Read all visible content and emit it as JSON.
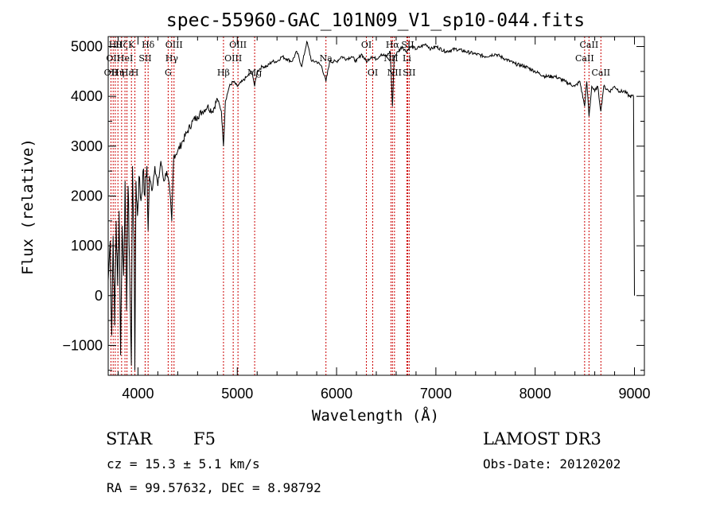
{
  "chart_data": {
    "type": "line",
    "title": "spec-55960-GAC_101N09_V1_sp10-044.fits",
    "xlabel": "Wavelength (Å)",
    "ylabel": "Flux (relative)",
    "xlim": [
      3700,
      9100
    ],
    "ylim": [
      -1600,
      5200
    ],
    "x_ticks": [
      4000,
      5000,
      6000,
      7000,
      8000,
      9000
    ],
    "y_ticks": [
      -1000,
      0,
      1000,
      2000,
      3000,
      4000,
      5000
    ],
    "x_tick_labels": [
      "4000",
      "5000",
      "6000",
      "7000",
      "8000",
      "9000"
    ],
    "y_tick_labels": [
      "−1000",
      "0",
      "1000",
      "2000",
      "3000",
      "4000",
      "5000"
    ],
    "series": [
      {
        "name": "spectrum",
        "points": [
          [
            3700,
            300
          ],
          [
            3720,
            1100
          ],
          [
            3735,
            -800
          ],
          [
            3750,
            1200
          ],
          [
            3765,
            -600
          ],
          [
            3780,
            1500
          ],
          [
            3795,
            200
          ],
          [
            3810,
            1700
          ],
          [
            3825,
            -1200
          ],
          [
            3840,
            1400
          ],
          [
            3855,
            400
          ],
          [
            3870,
            2300
          ],
          [
            3885,
            -300
          ],
          [
            3900,
            2200
          ],
          [
            3915,
            700
          ],
          [
            3933,
            -1400
          ],
          [
            3945,
            2600
          ],
          [
            3960,
            1100
          ],
          [
            3968,
            -1500
          ],
          [
            3980,
            2300
          ],
          [
            3995,
            1600
          ],
          [
            4010,
            2400
          ],
          [
            4030,
            1900
          ],
          [
            4050,
            2500
          ],
          [
            4070,
            2000
          ],
          [
            4090,
            2600
          ],
          [
            4102,
            1300
          ],
          [
            4115,
            2400
          ],
          [
            4140,
            2100
          ],
          [
            4170,
            2600
          ],
          [
            4200,
            2200
          ],
          [
            4230,
            2700
          ],
          [
            4260,
            2300
          ],
          [
            4290,
            2500
          ],
          [
            4320,
            2100
          ],
          [
            4340,
            1500
          ],
          [
            4360,
            2800
          ],
          [
            4400,
            2900
          ],
          [
            4450,
            3100
          ],
          [
            4500,
            3300
          ],
          [
            4550,
            3500
          ],
          [
            4600,
            3600
          ],
          [
            4650,
            3700
          ],
          [
            4700,
            3800
          ],
          [
            4750,
            3700
          ],
          [
            4800,
            3950
          ],
          [
            4840,
            3700
          ],
          [
            4861,
            3000
          ],
          [
            4880,
            3900
          ],
          [
            4920,
            4200
          ],
          [
            4960,
            4300
          ],
          [
            5000,
            4200
          ],
          [
            5050,
            4300
          ],
          [
            5100,
            4400
          ],
          [
            5150,
            4500
          ],
          [
            5175,
            4200
          ],
          [
            5200,
            4500
          ],
          [
            5250,
            4600
          ],
          [
            5300,
            4600
          ],
          [
            5350,
            4700
          ],
          [
            5400,
            4700
          ],
          [
            5450,
            4800
          ],
          [
            5500,
            4750
          ],
          [
            5550,
            4700
          ],
          [
            5600,
            4900
          ],
          [
            5650,
            4600
          ],
          [
            5700,
            5100
          ],
          [
            5750,
            4700
          ],
          [
            5800,
            4700
          ],
          [
            5850,
            4600
          ],
          [
            5893,
            4300
          ],
          [
            5930,
            4700
          ],
          [
            6000,
            4700
          ],
          [
            6050,
            4800
          ],
          [
            6100,
            4750
          ],
          [
            6150,
            4800
          ],
          [
            6200,
            4700
          ],
          [
            6250,
            4850
          ],
          [
            6300,
            4700
          ],
          [
            6350,
            4800
          ],
          [
            6400,
            4750
          ],
          [
            6450,
            4850
          ],
          [
            6500,
            4800
          ],
          [
            6540,
            4900
          ],
          [
            6563,
            3800
          ],
          [
            6580,
            4800
          ],
          [
            6620,
            4900
          ],
          [
            6660,
            5000
          ],
          [
            6700,
            4900
          ],
          [
            6750,
            5000
          ],
          [
            6800,
            4950
          ],
          [
            6850,
            5000
          ],
          [
            6900,
            5050
          ],
          [
            6950,
            4950
          ],
          [
            7000,
            5000
          ],
          [
            7100,
            4900
          ],
          [
            7200,
            4950
          ],
          [
            7300,
            4900
          ],
          [
            7400,
            4850
          ],
          [
            7500,
            4800
          ],
          [
            7600,
            4850
          ],
          [
            7700,
            4750
          ],
          [
            7800,
            4650
          ],
          [
            7900,
            4600
          ],
          [
            8000,
            4500
          ],
          [
            8100,
            4400
          ],
          [
            8200,
            4400
          ],
          [
            8300,
            4300
          ],
          [
            8400,
            4200
          ],
          [
            8450,
            4300
          ],
          [
            8498,
            3800
          ],
          [
            8520,
            4300
          ],
          [
            8542,
            3600
          ],
          [
            8570,
            4200
          ],
          [
            8600,
            4100
          ],
          [
            8630,
            4200
          ],
          [
            8662,
            3700
          ],
          [
            8690,
            4200
          ],
          [
            8750,
            4100
          ],
          [
            8800,
            4200
          ],
          [
            8850,
            4100
          ],
          [
            8900,
            4100
          ],
          [
            8950,
            4000
          ],
          [
            8990,
            4000
          ],
          [
            8995,
            2000
          ],
          [
            9000,
            0
          ]
        ]
      }
    ],
    "lines": [
      {
        "w": 3728,
        "label": "OII",
        "row": 2
      },
      {
        "w": 3750,
        "label": "OII",
        "row": 1
      },
      {
        "w": 3771,
        "label": "Hθ",
        "row": 0
      },
      {
        "w": 3798,
        "label": "Hη",
        "row": 2
      },
      {
        "w": 3835,
        "label": "Hζ",
        "row": 0
      },
      {
        "w": 3869,
        "label": "HeI",
        "row": 1
      },
      {
        "w": 3889,
        "label": "Hε",
        "row": 2
      },
      {
        "w": 3934,
        "label": "K",
        "row": 0
      },
      {
        "w": 3969,
        "label": "H",
        "row": 2
      },
      {
        "w": 4072,
        "label": "SII",
        "row": 1
      },
      {
        "w": 4102,
        "label": "Hδ",
        "row": 0
      },
      {
        "w": 4304,
        "label": "G",
        "row": 2
      },
      {
        "w": 4340,
        "label": "Hγ",
        "row": 1
      },
      {
        "w": 4363,
        "label": "OIII",
        "row": 0
      },
      {
        "w": 4861,
        "label": "Hβ",
        "row": 2
      },
      {
        "w": 4959,
        "label": "OIII",
        "row": 1
      },
      {
        "w": 5007,
        "label": "OIII",
        "row": 0
      },
      {
        "w": 5175,
        "label": "Mg",
        "row": 2
      },
      {
        "w": 5893,
        "label": "Na",
        "row": 1
      },
      {
        "w": 6300,
        "label": "OI",
        "row": 0
      },
      {
        "w": 6364,
        "label": "OI",
        "row": 2
      },
      {
        "w": 6548,
        "label": "NII",
        "row": 1
      },
      {
        "w": 6563,
        "label": "Hα",
        "row": 0
      },
      {
        "w": 6583,
        "label": "NII",
        "row": 2
      },
      {
        "w": 6708,
        "label": "Li",
        "row": 1
      },
      {
        "w": 6716,
        "label": "SII",
        "row": 0
      },
      {
        "w": 6731,
        "label": "SII",
        "row": 2
      },
      {
        "w": 8498,
        "label": "CaII",
        "row": 1
      },
      {
        "w": 8542,
        "label": "CaII",
        "row": 0
      },
      {
        "w": 8662,
        "label": "CaII",
        "row": 2
      }
    ],
    "colors": {
      "line": "#000000",
      "marker": "#cc0000"
    }
  },
  "info": {
    "class_label": "STAR",
    "subclass": "F5",
    "survey": "LAMOST DR3",
    "cz": "cz = 15.3 ± 5.1 km/s",
    "obs_date": "Obs-Date: 20120202",
    "radec": "RA =  99.57632, DEC =   8.98792"
  }
}
